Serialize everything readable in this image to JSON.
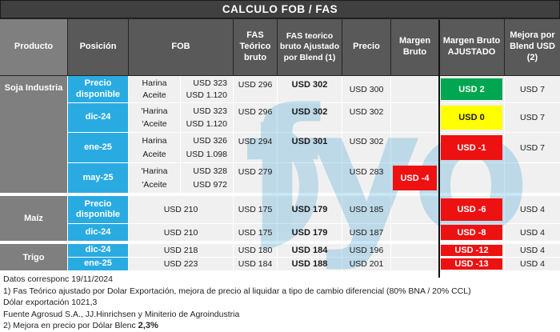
{
  "title": "CALCULO FOB / FAS",
  "watermark": {
    "text": "fyo"
  },
  "colors": {
    "title_bar": "#404040",
    "header_dark": "#595959",
    "header_light": "#7f7f7f",
    "position_cyan": "#29abe2",
    "cell_bg": "#f0f0f0",
    "chip_green": "#00a651",
    "chip_yellow": "#ffff00",
    "chip_red": "#ee1111",
    "watermark_blue": "#c9e6f5"
  },
  "header": {
    "producto": "Producto",
    "posicion": "Posición",
    "fob": "FOB",
    "fas_teorico": "FAS Teórico bruto",
    "fas_ajustado": "FAS teorico bruto Ajustado por Blend (1)",
    "precio": "Precio",
    "margen_bruto": "Margen Bruto",
    "margen_ajustado": "Margen Bruto AJUSTADO",
    "mejora": "Mejora por Blend USD (2)"
  },
  "groups": [
    {
      "product": "Soja Industria",
      "rows": [
        {
          "position": "Precio disponible",
          "fob": [
            {
              "label": "Harina",
              "value": "USD 323"
            },
            {
              "label": "Aceite",
              "value": "USD 1.120"
            }
          ],
          "fas_teorico": "USD 296",
          "fas_ajustado": "USD 302",
          "precio": "USD 300",
          "margen_bruto": "",
          "margen_ajustado": "USD 2",
          "margen_ajustado_color": "green",
          "mejora": "USD 7"
        },
        {
          "position": "dic-24",
          "fob": [
            {
              "label": "'Harina",
              "value": "USD 323"
            },
            {
              "label": "'Aceite",
              "value": "USD 1.120"
            }
          ],
          "fas_teorico": "USD 296",
          "fas_ajustado": "USD 302",
          "precio": "USD 302",
          "margen_bruto": "",
          "margen_ajustado": "USD 0",
          "margen_ajustado_color": "yellow",
          "mejora": "USD 7"
        },
        {
          "position": "ene-25",
          "fob": [
            {
              "label": "Harina",
              "value": "USD 326"
            },
            {
              "label": "Aceite",
              "value": "USD 1.098"
            }
          ],
          "fas_teorico": "USD 294",
          "fas_ajustado": "USD 301",
          "precio": "USD 302",
          "margen_bruto": "",
          "margen_ajustado": "USD -1",
          "margen_ajustado_color": "red",
          "mejora": "USD 7"
        },
        {
          "position": "may-25",
          "fob": [
            {
              "label": "'Harina",
              "value": "USD 328"
            },
            {
              "label": "'Aceite",
              "value": "USD 972"
            }
          ],
          "fas_teorico": "USD 279",
          "fas_ajustado": "",
          "precio": "USD 283",
          "margen_bruto": "USD -4",
          "margen_bruto_color": "red",
          "margen_ajustado": "",
          "mejora": ""
        }
      ]
    },
    {
      "product": "Maíz",
      "rows": [
        {
          "position": "Precio disponible",
          "fob_single": "USD 210",
          "fas_teorico": "USD 175",
          "fas_ajustado": "USD 179",
          "precio": "USD 185",
          "margen_bruto": "",
          "margen_ajustado": "USD -6",
          "margen_ajustado_color": "red",
          "mejora": "USD 4"
        },
        {
          "position": "dic-24",
          "fob_single": "USD 210",
          "fas_teorico": "USD 175",
          "fas_ajustado": "USD 179",
          "precio": "USD 187",
          "margen_bruto": "",
          "margen_ajustado": "USD -8",
          "margen_ajustado_color": "red",
          "mejora": "USD 4"
        }
      ]
    },
    {
      "product": "Trigo",
      "rows": [
        {
          "position": "dic-24",
          "fob_single": "USD 218",
          "fas_teorico": "USD 180",
          "fas_ajustado": "USD 184",
          "precio": "USD 196",
          "margen_bruto": "",
          "margen_ajustado": "USD -12",
          "margen_ajustado_color": "red",
          "mejora": "USD 4"
        },
        {
          "position": "ene-25",
          "fob_single": "USD 223",
          "fas_teorico": "USD 184",
          "fas_ajustado": "USD 188",
          "precio": "USD 201",
          "margen_bruto": "",
          "margen_ajustado": "USD -13",
          "margen_ajustado_color": "red",
          "mejora": "USD 4"
        }
      ]
    }
  ],
  "footer": {
    "line1": "Datos corresponc 19/11/2024",
    "line2": "1) Fas Teórico ajustado por Dolar Exportación, mejora de precio al liquidar a tipo de cambio diferencial (80% BNA / 20% CCL)",
    "line3": "Dólar exportación 1021,3",
    "line4": "Fuente Agrosud S.A., JJ.Hinrichsen y Miniterio de Agroindustria",
    "line5_prefix": "2) Mejora en precio por Dólar Blenc ",
    "line5_value": "2,3%"
  }
}
